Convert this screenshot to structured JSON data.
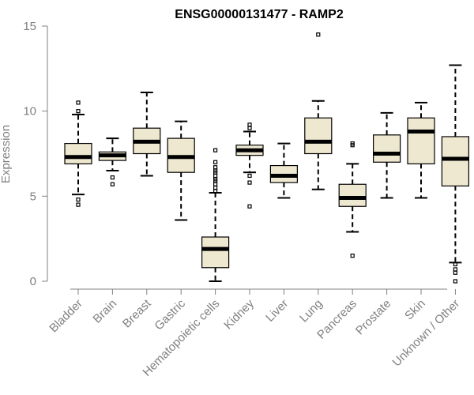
{
  "chart_data": {
    "type": "boxplot",
    "title": "ENSG00000131477 - RAMP2",
    "xlabel": "",
    "ylabel": "Expression",
    "ylim": [
      0,
      15
    ],
    "yticks": [
      0,
      5,
      10,
      15
    ],
    "colors": {
      "box_fill": "#EEE8D0",
      "stroke": "#000000",
      "axis": "#808080"
    },
    "categories": [
      "Bladder",
      "Brain",
      "Breast",
      "Gastric",
      "Hematopoietic cells",
      "Kidney",
      "Liver",
      "Lung",
      "Pancreas",
      "Prostate",
      "Skin",
      "Unknown / Other"
    ],
    "series": [
      {
        "name": "Bladder",
        "whisker_low": 5.1,
        "q1": 6.9,
        "median": 7.3,
        "q3": 8.1,
        "whisker_high": 9.8,
        "outliers": [
          4.5,
          4.8,
          10.0,
          10.5
        ]
      },
      {
        "name": "Brain",
        "whisker_low": 6.5,
        "q1": 7.1,
        "median": 7.4,
        "q3": 7.6,
        "whisker_high": 8.4,
        "outliers": [
          5.7,
          6.1
        ]
      },
      {
        "name": "Breast",
        "whisker_low": 6.2,
        "q1": 7.5,
        "median": 8.2,
        "q3": 9.0,
        "whisker_high": 11.1,
        "outliers": []
      },
      {
        "name": "Gastric",
        "whisker_low": 3.6,
        "q1": 6.4,
        "median": 7.3,
        "q3": 8.4,
        "whisker_high": 9.4,
        "outliers": []
      },
      {
        "name": "Hematopoietic cells",
        "whisker_low": 0.0,
        "q1": 0.8,
        "median": 1.9,
        "q3": 2.6,
        "whisker_high": 5.2,
        "outliers": [
          5.3,
          5.5,
          5.7,
          5.9,
          6.0,
          6.2,
          6.4,
          6.5,
          6.7,
          7.0,
          7.7
        ]
      },
      {
        "name": "Kidney",
        "whisker_low": 6.4,
        "q1": 7.4,
        "median": 7.7,
        "q3": 8.0,
        "whisker_high": 8.8,
        "outliers": [
          4.4,
          5.8,
          6.2,
          9.0,
          9.2
        ]
      },
      {
        "name": "Liver",
        "whisker_low": 4.9,
        "q1": 5.8,
        "median": 6.2,
        "q3": 6.8,
        "whisker_high": 8.1,
        "outliers": []
      },
      {
        "name": "Lung",
        "whisker_low": 5.4,
        "q1": 7.5,
        "median": 8.2,
        "q3": 9.6,
        "whisker_high": 10.6,
        "outliers": [
          14.5
        ]
      },
      {
        "name": "Pancreas",
        "whisker_low": 2.9,
        "q1": 4.4,
        "median": 4.9,
        "q3": 5.7,
        "whisker_high": 6.9,
        "outliers": [
          1.5,
          8.0,
          8.1
        ]
      },
      {
        "name": "Prostate",
        "whisker_low": 4.9,
        "q1": 7.0,
        "median": 7.5,
        "q3": 8.6,
        "whisker_high": 9.9,
        "outliers": []
      },
      {
        "name": "Skin",
        "whisker_low": 4.9,
        "q1": 6.9,
        "median": 8.8,
        "q3": 9.6,
        "whisker_high": 10.5,
        "outliers": []
      },
      {
        "name": "Unknown / Other",
        "whisker_low": 1.1,
        "q1": 5.6,
        "median": 7.2,
        "q3": 8.5,
        "whisker_high": 12.7,
        "outliers": [
          0.0,
          0.5,
          0.7,
          1.0
        ]
      }
    ]
  }
}
